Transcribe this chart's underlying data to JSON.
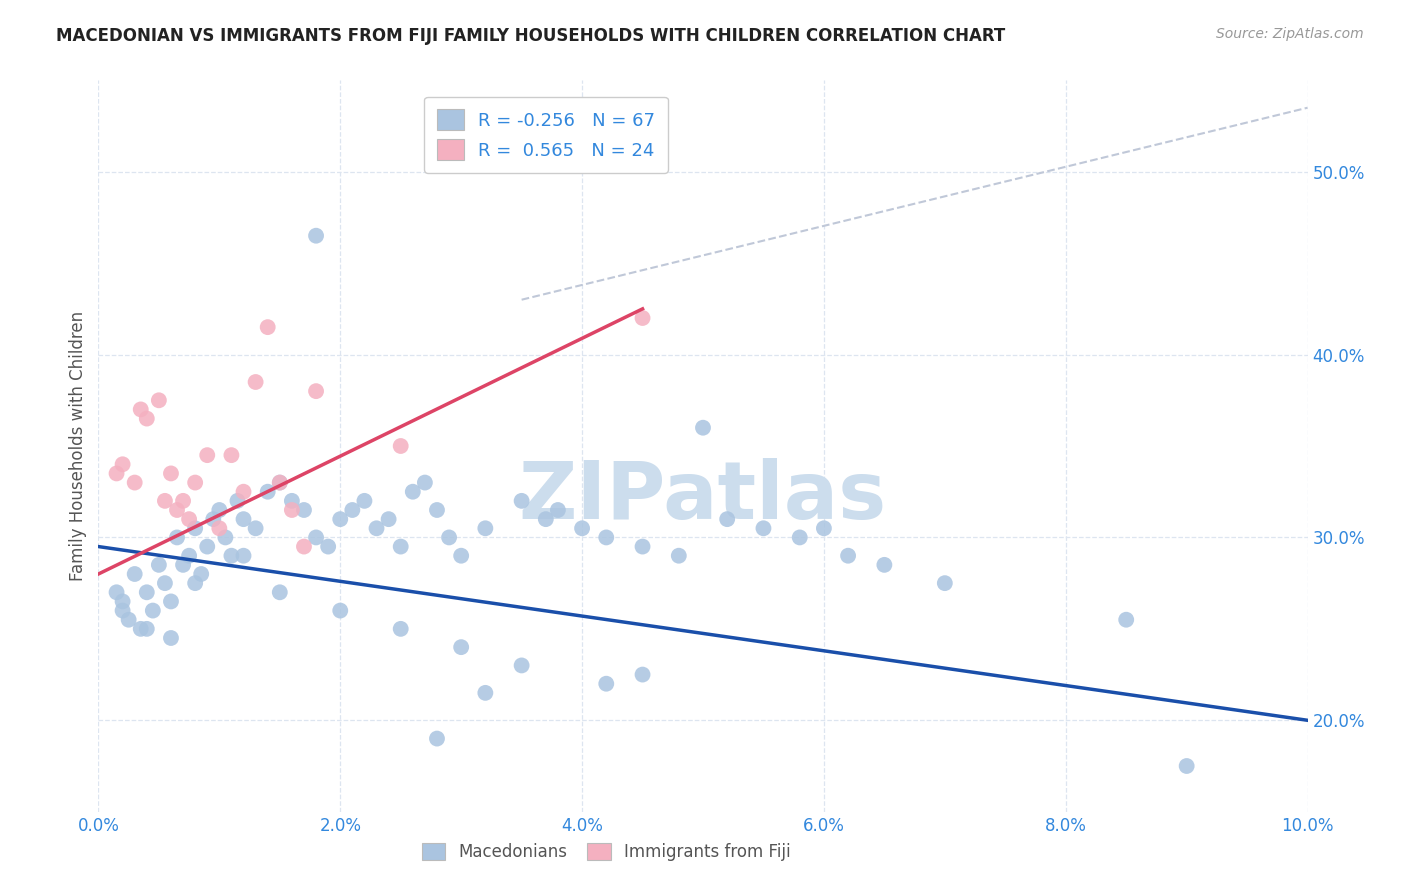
{
  "title": "MACEDONIAN VS IMMIGRANTS FROM FIJI FAMILY HOUSEHOLDS WITH CHILDREN CORRELATION CHART",
  "source": "Source: ZipAtlas.com",
  "ylabel": "Family Households with Children",
  "xlim": [
    0.0,
    10.0
  ],
  "ylim": [
    15.0,
    55.0
  ],
  "x_ticks": [
    0.0,
    2.0,
    4.0,
    6.0,
    8.0,
    10.0
  ],
  "y_ticks": [
    20.0,
    30.0,
    40.0,
    50.0
  ],
  "macedonian_color": "#aac4e0",
  "fiji_color": "#f4b0c0",
  "trend_blue": "#1a4faa",
  "trend_pink": "#dd4466",
  "ref_line_color": "#c0c8d8",
  "watermark_color": "#ccdded",
  "grid_color": "#dde5f0",
  "axis_label_color": "#3388dd",
  "title_color": "#222222",
  "ylabel_color": "#555555",
  "blue_scatter": [
    [
      0.15,
      27.0
    ],
    [
      0.2,
      26.5
    ],
    [
      0.25,
      25.5
    ],
    [
      0.3,
      28.0
    ],
    [
      0.35,
      25.0
    ],
    [
      0.4,
      27.0
    ],
    [
      0.45,
      26.0
    ],
    [
      0.5,
      28.5
    ],
    [
      0.55,
      27.5
    ],
    [
      0.6,
      26.5
    ],
    [
      0.65,
      30.0
    ],
    [
      0.7,
      28.5
    ],
    [
      0.75,
      29.0
    ],
    [
      0.8,
      30.5
    ],
    [
      0.85,
      28.0
    ],
    [
      0.9,
      29.5
    ],
    [
      0.95,
      31.0
    ],
    [
      1.0,
      31.5
    ],
    [
      1.05,
      30.0
    ],
    [
      1.1,
      29.0
    ],
    [
      1.15,
      32.0
    ],
    [
      1.2,
      31.0
    ],
    [
      1.3,
      30.5
    ],
    [
      1.4,
      32.5
    ],
    [
      1.5,
      33.0
    ],
    [
      1.6,
      32.0
    ],
    [
      1.7,
      31.5
    ],
    [
      1.8,
      30.0
    ],
    [
      1.9,
      29.5
    ],
    [
      2.0,
      31.0
    ],
    [
      2.1,
      31.5
    ],
    [
      2.2,
      32.0
    ],
    [
      2.3,
      30.5
    ],
    [
      2.4,
      31.0
    ],
    [
      2.5,
      29.5
    ],
    [
      2.6,
      32.5
    ],
    [
      2.7,
      33.0
    ],
    [
      2.8,
      31.5
    ],
    [
      2.9,
      30.0
    ],
    [
      3.0,
      29.0
    ],
    [
      3.2,
      30.5
    ],
    [
      3.5,
      32.0
    ],
    [
      3.7,
      31.0
    ],
    [
      3.8,
      31.5
    ],
    [
      4.0,
      30.5
    ],
    [
      4.2,
      30.0
    ],
    [
      4.5,
      29.5
    ],
    [
      4.8,
      29.0
    ],
    [
      5.0,
      36.0
    ],
    [
      5.2,
      31.0
    ],
    [
      5.5,
      30.5
    ],
    [
      5.8,
      30.0
    ],
    [
      6.0,
      30.5
    ],
    [
      6.2,
      29.0
    ],
    [
      6.5,
      28.5
    ],
    [
      7.0,
      27.5
    ],
    [
      8.5,
      25.5
    ],
    [
      9.0,
      17.5
    ],
    [
      0.2,
      26.0
    ],
    [
      0.4,
      25.0
    ],
    [
      0.6,
      24.5
    ],
    [
      0.8,
      27.5
    ],
    [
      1.2,
      29.0
    ],
    [
      1.5,
      27.0
    ],
    [
      2.0,
      26.0
    ],
    [
      2.5,
      25.0
    ],
    [
      3.0,
      24.0
    ],
    [
      3.5,
      23.0
    ],
    [
      4.5,
      22.5
    ],
    [
      1.8,
      46.5
    ],
    [
      2.8,
      19.0
    ],
    [
      3.2,
      21.5
    ],
    [
      4.2,
      22.0
    ]
  ],
  "pink_scatter": [
    [
      0.15,
      33.5
    ],
    [
      0.2,
      34.0
    ],
    [
      0.3,
      33.0
    ],
    [
      0.35,
      37.0
    ],
    [
      0.4,
      36.5
    ],
    [
      0.5,
      37.5
    ],
    [
      0.55,
      32.0
    ],
    [
      0.6,
      33.5
    ],
    [
      0.65,
      31.5
    ],
    [
      0.7,
      32.0
    ],
    [
      0.75,
      31.0
    ],
    [
      0.8,
      33.0
    ],
    [
      0.9,
      34.5
    ],
    [
      1.0,
      30.5
    ],
    [
      1.1,
      34.5
    ],
    [
      1.2,
      32.5
    ],
    [
      1.3,
      38.5
    ],
    [
      1.4,
      41.5
    ],
    [
      1.5,
      33.0
    ],
    [
      1.6,
      31.5
    ],
    [
      1.7,
      29.5
    ],
    [
      1.8,
      38.0
    ],
    [
      2.5,
      35.0
    ],
    [
      4.5,
      42.0
    ]
  ],
  "blue_trend_x": [
    0.0,
    10.0
  ],
  "blue_trend_y": [
    29.5,
    20.0
  ],
  "pink_trend_x": [
    0.0,
    4.5
  ],
  "pink_trend_y": [
    28.0,
    42.5
  ],
  "ref_line_x": [
    3.5,
    10.0
  ],
  "ref_line_y": [
    43.0,
    53.5
  ]
}
